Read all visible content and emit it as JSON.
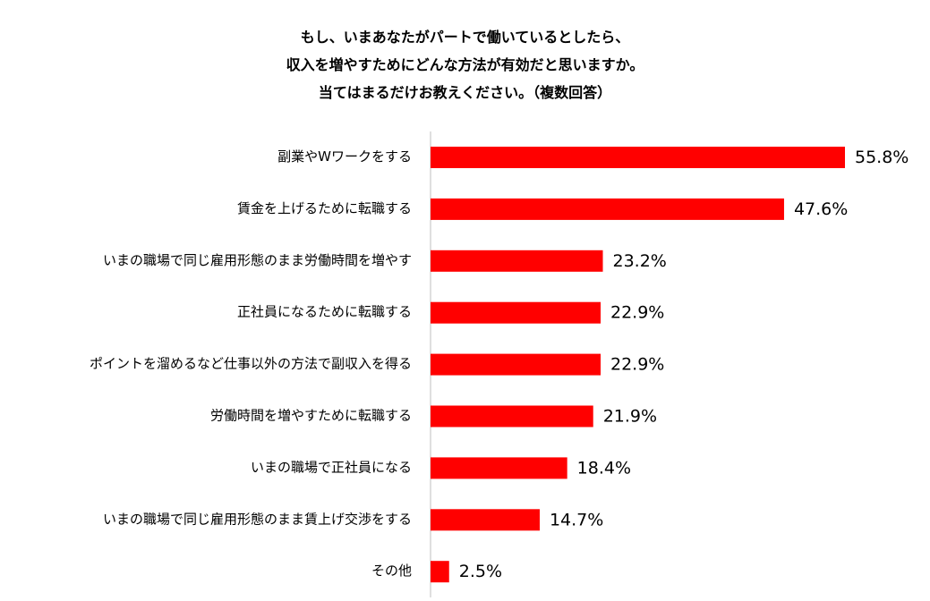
{
  "chart_data": {
    "type": "bar",
    "orientation": "horizontal",
    "title_lines": [
      "もし、いまあなたがパートで働いているとしたら、",
      "収入を増やすためにどんな方法が有効だと思いますか。",
      "当てはまるだけお教えください。（複数回答）"
    ],
    "categories": [
      "副業やWワークをする",
      "賃金を上げるために転職する",
      "いまの職場で同じ雇用形態のまま労働時間を増やす",
      "正社員になるために転職する",
      "ポイントを溜めるなど仕事以外の方法で副収入を得る",
      "労働時間を増やすために転職する",
      "いまの職場で正社員になる",
      "いまの職場で同じ雇用形態のまま賃上げ交渉をする",
      "その他"
    ],
    "values": [
      55.8,
      47.6,
      23.2,
      22.9,
      22.9,
      21.9,
      18.4,
      14.7,
      2.5
    ],
    "value_labels": [
      "55.8%",
      "47.6%",
      "23.2%",
      "22.9%",
      "22.9%",
      "21.9%",
      "18.4%",
      "14.7%",
      "2.5%"
    ],
    "unit": "%",
    "xlim": [
      0,
      60
    ],
    "bar_color": "#ff0000",
    "grid": false,
    "legend": "none"
  }
}
